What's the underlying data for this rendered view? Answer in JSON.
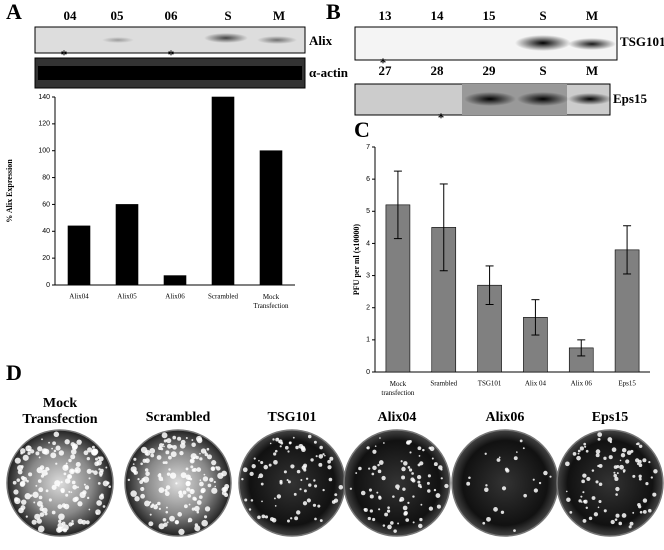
{
  "panel_labels": [
    "A",
    "B",
    "C",
    "D"
  ],
  "blot_a": {
    "lanes": [
      "04",
      "05",
      "06",
      "S",
      "M"
    ],
    "row_labels": [
      "Alix",
      "α-actin"
    ],
    "markers": [
      "*",
      "*"
    ]
  },
  "blot_b": {
    "top": {
      "lanes": [
        "13",
        "14",
        "15",
        "S",
        "M"
      ],
      "label": "TSG101",
      "markers": [
        "*"
      ]
    },
    "bottom": {
      "lanes": [
        "27",
        "28",
        "29",
        "S",
        "M"
      ],
      "label": "Eps15",
      "markers": [
        "*"
      ]
    }
  },
  "plates": {
    "labels": [
      "Mock\nTransfection",
      "Scrambled",
      "TSG101",
      "Alix04",
      "Alix06",
      "Eps15"
    ]
  },
  "chart_data": [
    {
      "type": "bar",
      "ylabel": "% Alix Expression",
      "categories": [
        "Alix04",
        "Alix05",
        "Alix06",
        "Scrambled",
        "Mock\nTransfection"
      ],
      "values": [
        44,
        60,
        7,
        140,
        100
      ],
      "color": "#000000",
      "ylim": [
        0,
        140
      ],
      "yticks": [
        0,
        20,
        40,
        60,
        80,
        100,
        120,
        140
      ]
    },
    {
      "type": "bar",
      "ylabel": "PFU per ml (x10000)",
      "categories": [
        "Mock\ntransfection",
        "Srambled",
        "TSG101",
        "Alix 04",
        "Alix 06",
        "Eps15"
      ],
      "values": [
        5.2,
        4.5,
        2.7,
        1.7,
        0.75,
        3.8
      ],
      "errors": [
        1.05,
        1.35,
        0.6,
        0.55,
        0.25,
        0.75
      ],
      "color": "#808080",
      "ylim": [
        0,
        7
      ],
      "yticks": [
        0,
        1,
        2,
        3,
        4,
        5,
        6,
        7
      ]
    }
  ]
}
